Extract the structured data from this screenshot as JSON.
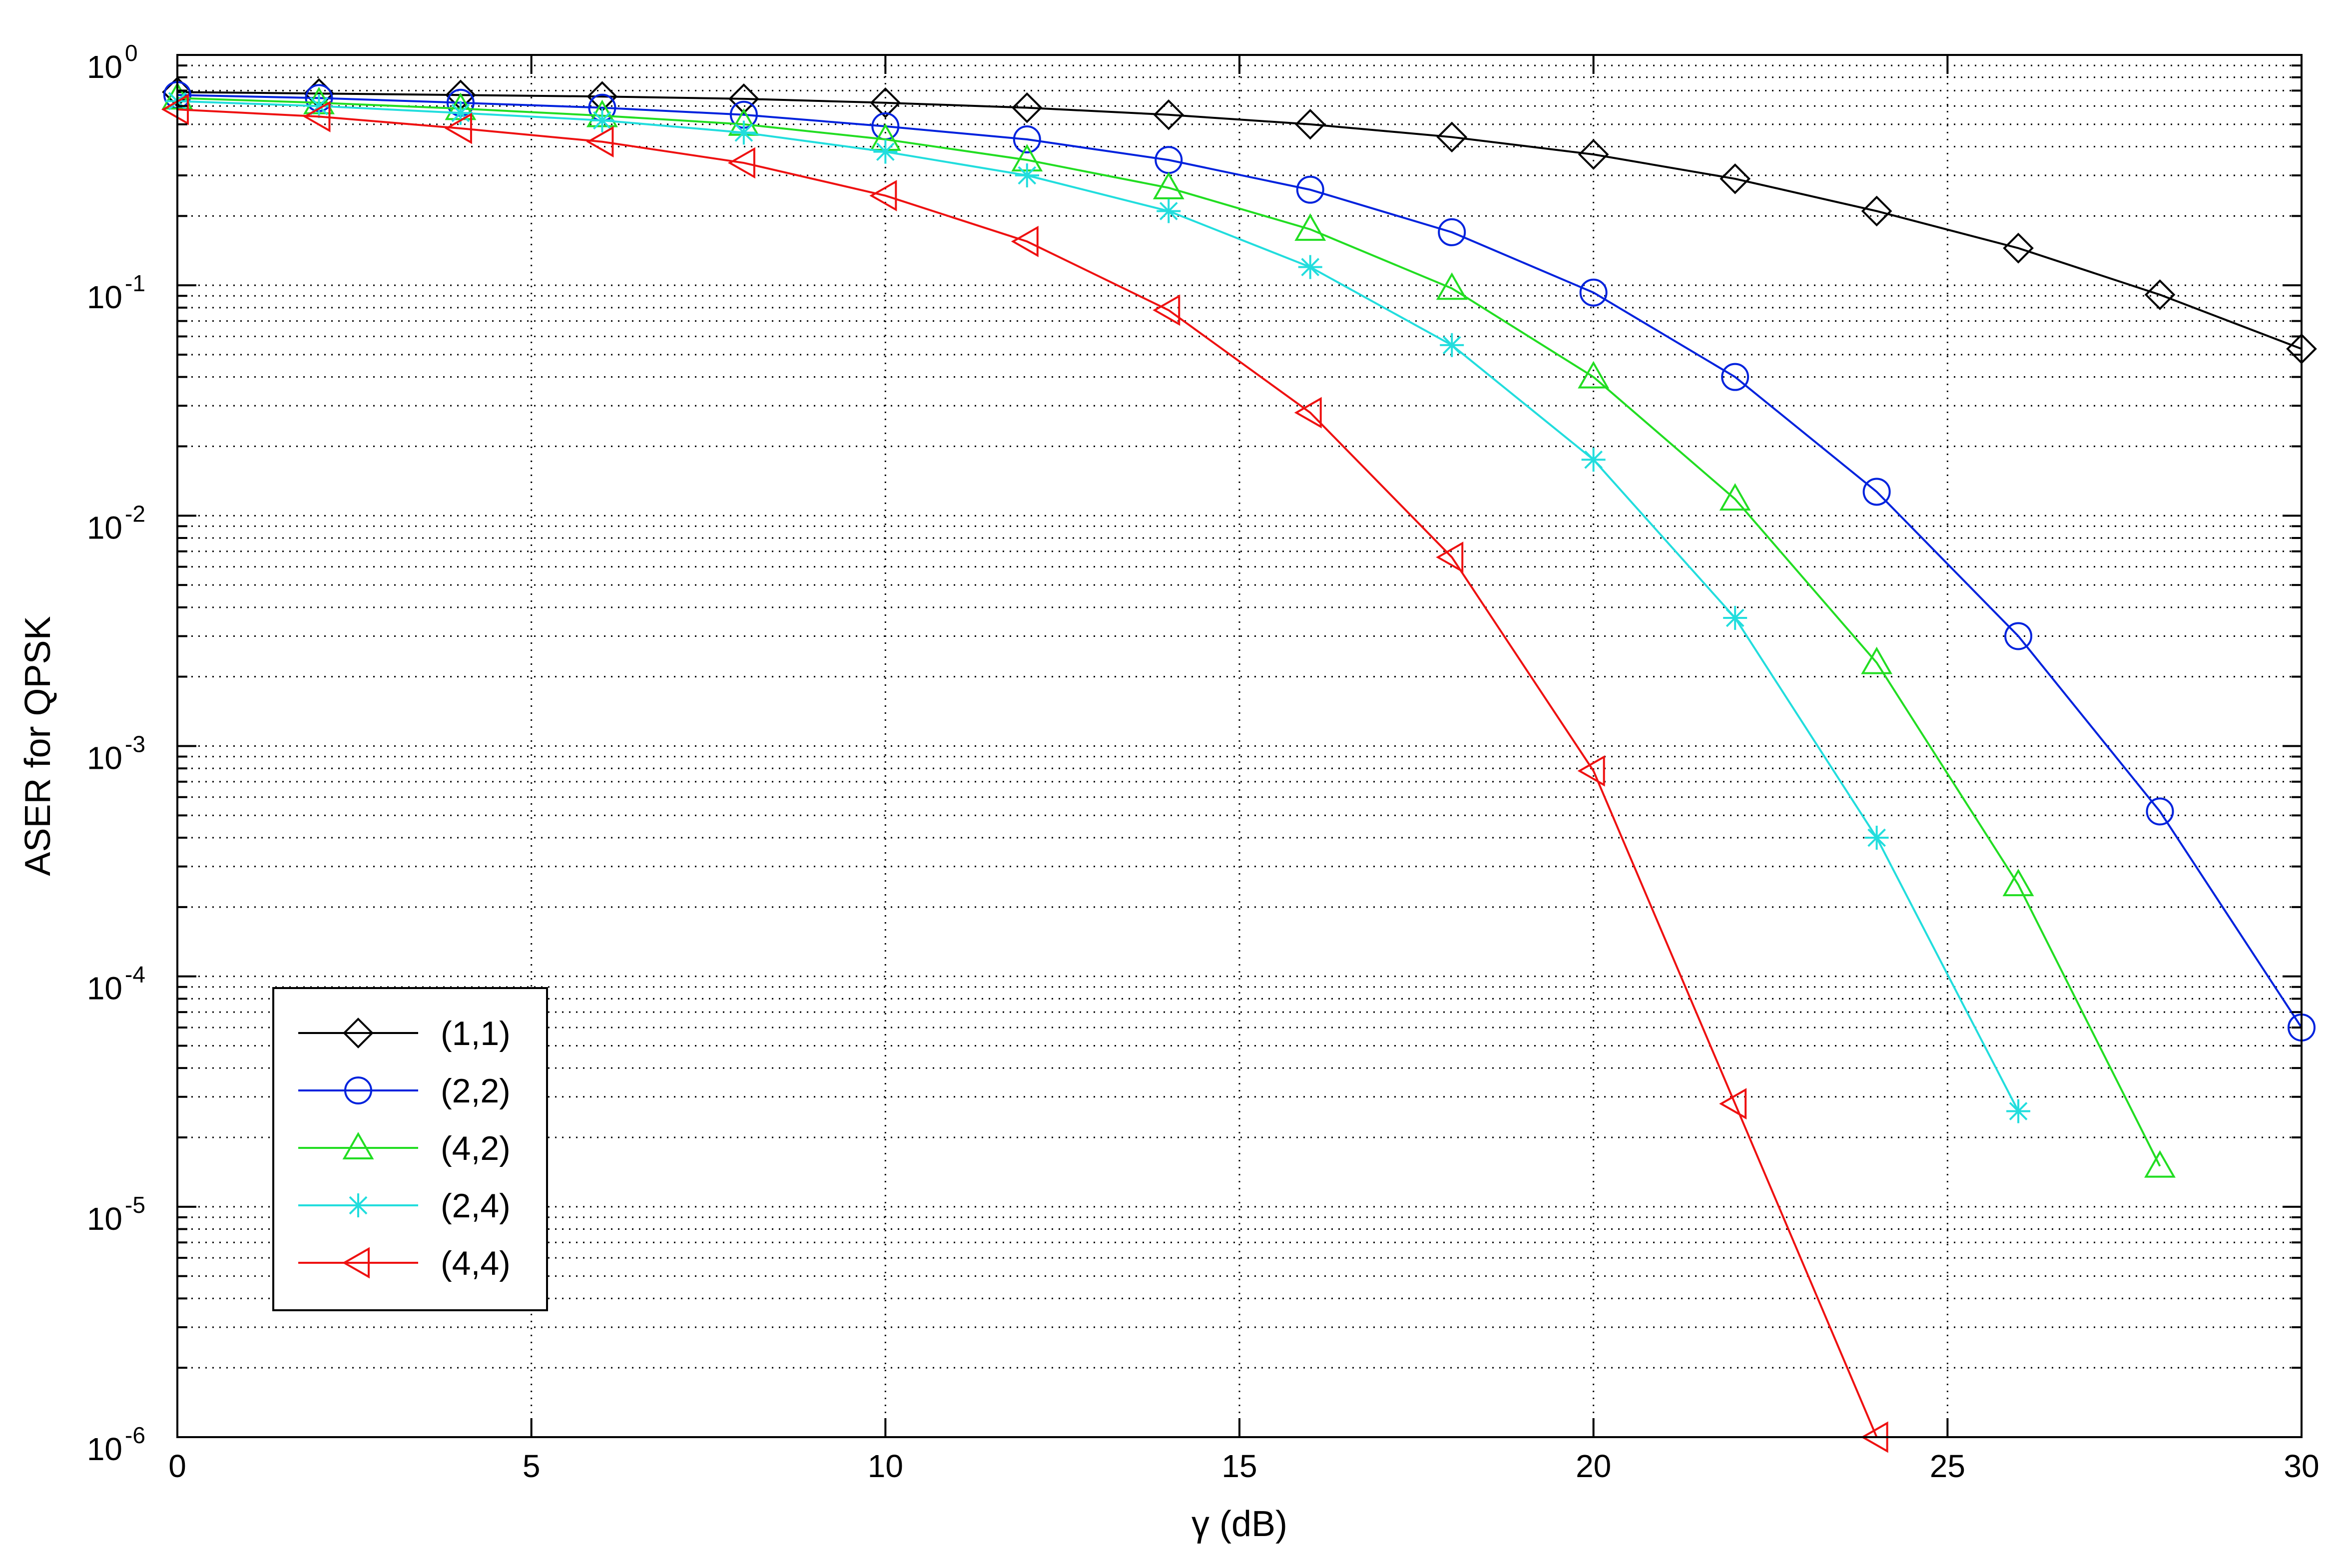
{
  "chart_data": {
    "type": "line",
    "xlabel": "γ (dB)",
    "ylabel": "ASER for QPSK",
    "xlim": [
      0,
      30
    ],
    "ylim": [
      1e-06,
      1
    ],
    "yscale": "log",
    "grid": "major and minor, dotted",
    "legend_position": "bottom-left",
    "x_ticks": [
      "0",
      "5",
      "10",
      "15",
      "20",
      "25",
      "30"
    ],
    "y_ticks": [
      {
        "base": "10",
        "exp": "0",
        "value": 1
      },
      {
        "base": "10",
        "exp": "-1",
        "value": 0.1
      },
      {
        "base": "10",
        "exp": "-2",
        "value": 0.01
      },
      {
        "base": "10",
        "exp": "-3",
        "value": 0.001
      },
      {
        "base": "10",
        "exp": "-4",
        "value": 0.0001
      },
      {
        "base": "10",
        "exp": "-5",
        "value": 1e-05
      },
      {
        "base": "10",
        "exp": "-6",
        "value": 1e-06
      }
    ],
    "series": [
      {
        "name": "(1,1)",
        "color": "#000000",
        "marker": "diamond",
        "x": [
          0,
          2,
          4,
          6,
          8,
          10,
          12,
          14,
          16,
          18,
          20,
          22,
          24,
          26,
          28,
          30
        ],
        "y": [
          0.69,
          0.68,
          0.67,
          0.66,
          0.645,
          0.62,
          0.59,
          0.55,
          0.5,
          0.44,
          0.37,
          0.29,
          0.21,
          0.145,
          0.091,
          0.053
        ]
      },
      {
        "name": "(2,2)",
        "color": "#0022dd",
        "marker": "circle",
        "x": [
          0,
          2,
          4,
          6,
          8,
          10,
          12,
          14,
          16,
          18,
          20,
          22,
          24,
          26,
          28,
          30
        ],
        "y": [
          0.67,
          0.65,
          0.62,
          0.59,
          0.55,
          0.49,
          0.43,
          0.35,
          0.26,
          0.17,
          0.093,
          0.04,
          0.0127,
          0.003,
          0.00052,
          6e-05
        ]
      },
      {
        "name": "(4,2)",
        "color": "#22dd22",
        "marker": "triangle-up",
        "x": [
          0,
          2,
          4,
          6,
          8,
          10,
          12,
          14,
          16,
          18,
          20,
          22,
          24,
          26,
          28
        ],
        "y": [
          0.65,
          0.62,
          0.585,
          0.545,
          0.5,
          0.43,
          0.35,
          0.265,
          0.175,
          0.097,
          0.04,
          0.0118,
          0.0023,
          0.00025,
          1.5e-05
        ]
      },
      {
        "name": "(2,4)",
        "color": "#22dddd",
        "marker": "star",
        "x": [
          0,
          2,
          4,
          6,
          8,
          10,
          12,
          14,
          16,
          18,
          20,
          22,
          24,
          26
        ],
        "y": [
          0.63,
          0.6,
          0.56,
          0.52,
          0.46,
          0.38,
          0.3,
          0.21,
          0.12,
          0.055,
          0.0175,
          0.0036,
          0.0004,
          2.6e-05
        ]
      },
      {
        "name": "(4,4)",
        "color": "#ee1111",
        "marker": "triangle-left",
        "x": [
          0,
          2,
          4,
          6,
          8,
          10,
          12,
          14,
          16,
          18,
          20,
          22,
          24
        ],
        "y": [
          0.58,
          0.54,
          0.48,
          0.42,
          0.34,
          0.245,
          0.155,
          0.078,
          0.028,
          0.0066,
          0.00078,
          2.8e-05,
          1e-06
        ]
      }
    ]
  }
}
